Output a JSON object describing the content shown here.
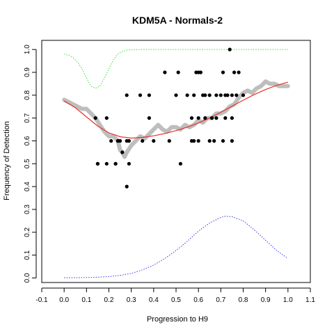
{
  "chart_data": {
    "type": "scatter",
    "title": "KDM5A - Normals-2",
    "xlabel": "Progression to H9",
    "ylabel": "Frequency of Detection",
    "xlim": [
      -0.1,
      1.1
    ],
    "ylim": [
      -0.02,
      1.04
    ],
    "x_ticks": [
      "-0.1",
      "0.0",
      "0.1",
      "0.2",
      "0.3",
      "0.4",
      "0.5",
      "0.6",
      "0.7",
      "0.8",
      "0.9",
      "1.0",
      "1.1"
    ],
    "y_ticks": [
      "0.0",
      "0.1",
      "0.2",
      "0.3",
      "0.4",
      "0.5",
      "0.6",
      "0.7",
      "0.8",
      "0.9",
      "1.0"
    ],
    "grid": false,
    "colors": {
      "points": "#000000",
      "running_mean": "#bebebe",
      "fit": "#e8302a",
      "green_curve": "#33dd33",
      "blue_curve": "#3333ee"
    },
    "series": [
      {
        "name": "observations",
        "style": "points",
        "x": [
          0.14,
          0.19,
          0.15,
          0.21,
          0.24,
          0.28,
          0.28,
          0.34,
          0.38,
          0.26,
          0.29,
          0.38,
          0.45,
          0.51,
          0.5,
          0.47,
          0.52,
          0.55,
          0.58,
          0.59,
          0.6,
          0.61,
          0.62,
          0.63,
          0.6,
          0.65,
          0.66,
          0.68,
          0.7,
          0.71,
          0.72,
          0.73,
          0.74,
          0.75,
          0.76,
          0.77,
          0.78,
          0.8,
          0.57,
          0.63,
          0.67,
          0.71,
          0.75,
          0.58,
          0.6,
          0.23,
          0.25,
          0.29,
          0.35,
          0.4,
          0.15,
          0.19,
          0.23,
          0.28,
          0.72,
          0.65,
          0.68,
          0.75,
          0.57,
          0.24
        ],
        "y": [
          0.7,
          0.7,
          0.5,
          0.6,
          0.6,
          0.8,
          0.4,
          0.8,
          0.8,
          0.55,
          0.5,
          0.7,
          0.9,
          0.9,
          0.8,
          0.6,
          0.5,
          0.8,
          0.8,
          0.9,
          0.9,
          0.9,
          0.8,
          0.8,
          0.7,
          0.8,
          0.7,
          0.8,
          0.8,
          0.9,
          0.8,
          0.8,
          1.0,
          0.8,
          0.9,
          0.8,
          0.9,
          0.8,
          0.7,
          0.7,
          0.6,
          0.6,
          0.6,
          0.6,
          0.6,
          0.5,
          0.6,
          0.6,
          0.6,
          0.6,
          0.5,
          0.5,
          0.5,
          0.6,
          0.7,
          0.6,
          0.7,
          0.7,
          0.6,
          0.6
        ]
      },
      {
        "name": "running mean",
        "style": "thick-line",
        "x": [
          0.0,
          0.02,
          0.04,
          0.06,
          0.08,
          0.1,
          0.12,
          0.14,
          0.16,
          0.18,
          0.2,
          0.22,
          0.24,
          0.25,
          0.26,
          0.27,
          0.28,
          0.3,
          0.32,
          0.34,
          0.36,
          0.38,
          0.4,
          0.42,
          0.44,
          0.46,
          0.48,
          0.5,
          0.52,
          0.54,
          0.56,
          0.58,
          0.6,
          0.62,
          0.64,
          0.66,
          0.68,
          0.7,
          0.72,
          0.74,
          0.76,
          0.78,
          0.8,
          0.82,
          0.84,
          0.86,
          0.88,
          0.9,
          0.92,
          0.94,
          0.96,
          0.98,
          1.0
        ],
        "y": [
          0.78,
          0.77,
          0.76,
          0.75,
          0.74,
          0.74,
          0.72,
          0.7,
          0.67,
          0.64,
          0.62,
          0.62,
          0.6,
          0.56,
          0.55,
          0.53,
          0.55,
          0.58,
          0.6,
          0.62,
          0.61,
          0.63,
          0.65,
          0.67,
          0.65,
          0.64,
          0.66,
          0.66,
          0.65,
          0.67,
          0.66,
          0.67,
          0.69,
          0.68,
          0.7,
          0.7,
          0.72,
          0.72,
          0.73,
          0.75,
          0.76,
          0.79,
          0.81,
          0.82,
          0.81,
          0.83,
          0.84,
          0.86,
          0.85,
          0.85,
          0.84,
          0.84,
          0.84
        ]
      },
      {
        "name": "fitted",
        "style": "line",
        "x": [
          0.0,
          0.05,
          0.1,
          0.15,
          0.2,
          0.25,
          0.3,
          0.35,
          0.4,
          0.45,
          0.5,
          0.55,
          0.6,
          0.65,
          0.7,
          0.75,
          0.8,
          0.85,
          0.9,
          0.95,
          1.0
        ],
        "y": [
          0.775,
          0.745,
          0.705,
          0.665,
          0.635,
          0.618,
          0.612,
          0.615,
          0.622,
          0.632,
          0.645,
          0.66,
          0.678,
          0.7,
          0.725,
          0.752,
          0.778,
          0.803,
          0.825,
          0.843,
          0.857
        ]
      },
      {
        "name": "green",
        "style": "dotted",
        "x": [
          0.0,
          0.02,
          0.04,
          0.06,
          0.08,
          0.1,
          0.12,
          0.14,
          0.16,
          0.18,
          0.2,
          0.22,
          0.24,
          0.26,
          0.28,
          0.3,
          0.35,
          0.4,
          0.5,
          0.6,
          0.7,
          0.8,
          0.9,
          1.0
        ],
        "y": [
          0.98,
          0.975,
          0.965,
          0.945,
          0.915,
          0.875,
          0.84,
          0.83,
          0.84,
          0.875,
          0.915,
          0.955,
          0.98,
          0.992,
          0.997,
          0.999,
          1.0,
          1.0,
          1.0,
          1.0,
          1.0,
          1.0,
          1.0,
          1.0
        ]
      },
      {
        "name": "blue",
        "style": "dotted",
        "x": [
          0.0,
          0.05,
          0.1,
          0.15,
          0.2,
          0.25,
          0.3,
          0.35,
          0.4,
          0.45,
          0.5,
          0.55,
          0.6,
          0.65,
          0.7,
          0.72,
          0.75,
          0.8,
          0.85,
          0.9,
          0.95,
          1.0
        ],
        "y": [
          0.001,
          0.001,
          0.002,
          0.003,
          0.006,
          0.011,
          0.02,
          0.035,
          0.056,
          0.085,
          0.12,
          0.16,
          0.205,
          0.24,
          0.265,
          0.27,
          0.268,
          0.25,
          0.21,
          0.165,
          0.12,
          0.085
        ]
      }
    ]
  }
}
